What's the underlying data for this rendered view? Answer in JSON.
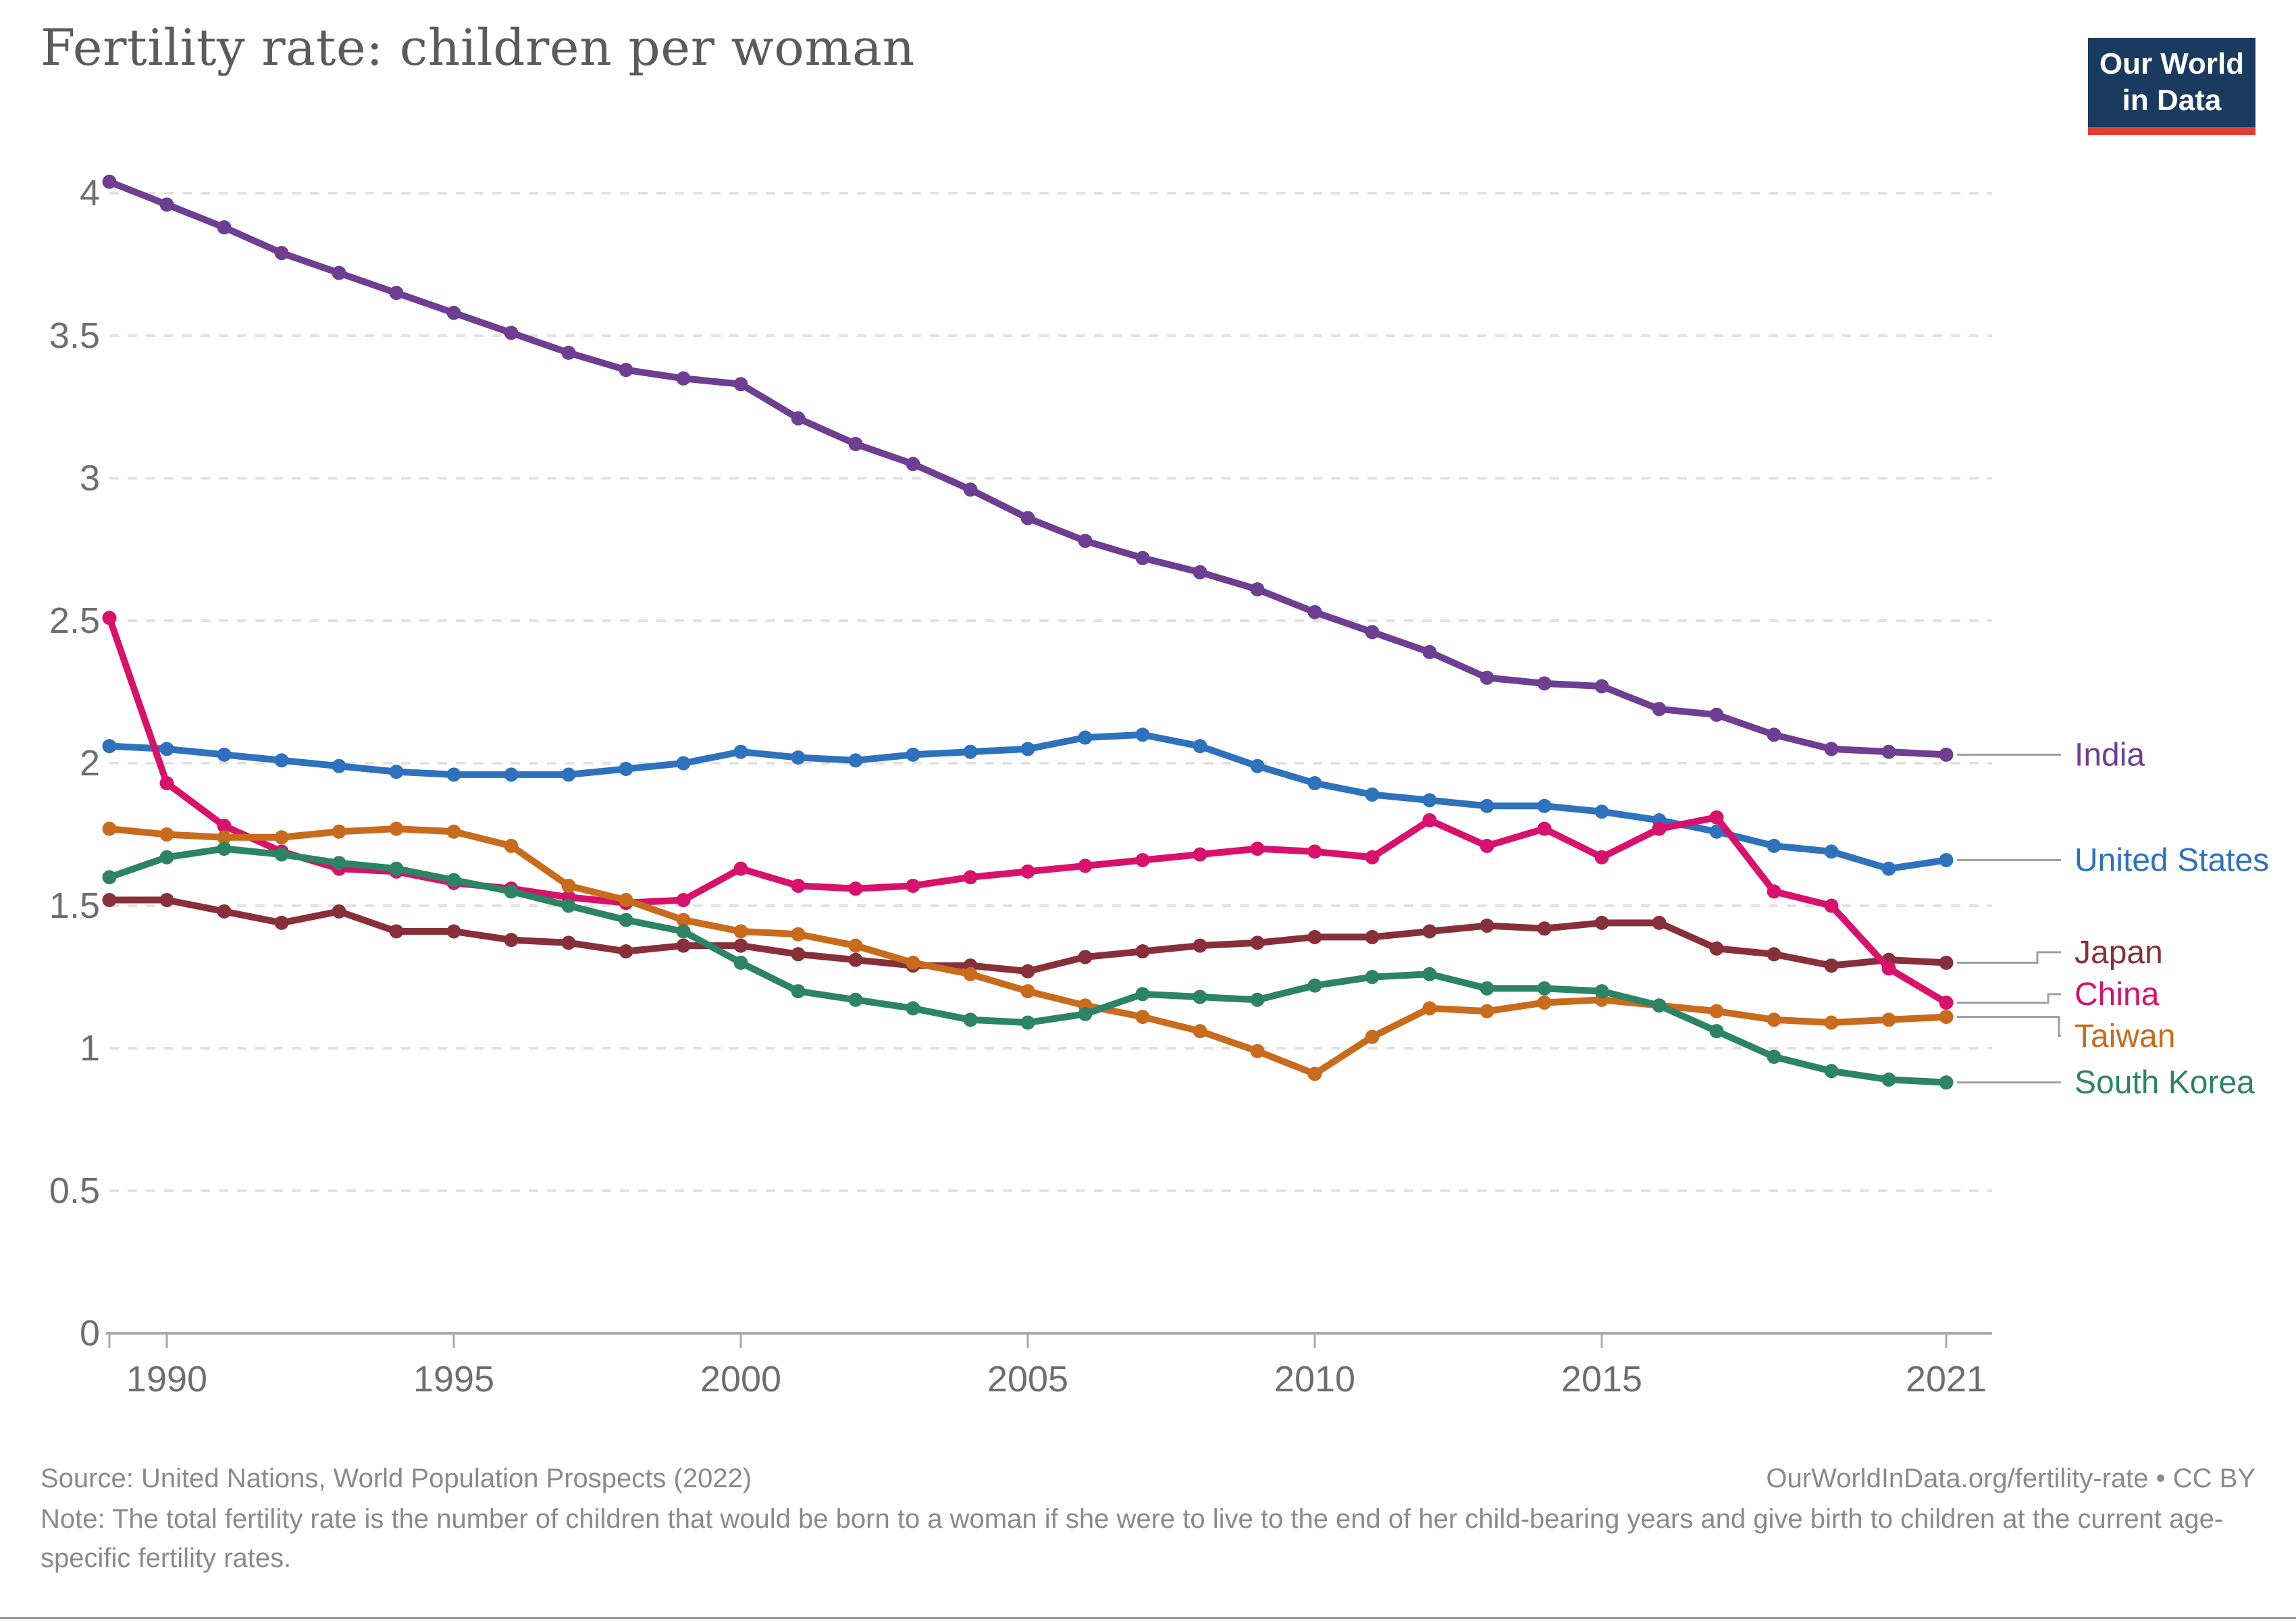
{
  "header": {
    "title": "Fertility rate: children per woman",
    "logo": {
      "line1": "Our World",
      "line2": "in Data",
      "bg_color": "#1a3a5f",
      "bar_color": "#e23d32"
    }
  },
  "footer": {
    "source": "Source: United Nations, World Population Prospects (2022)",
    "note": "Note: The total fertility rate is the number of children that would be born to a woman if she were to live to the end of her child-bearing years and give birth to children at the current age-specific fertility rates.",
    "link": "OurWorldInData.org/fertility-rate • CC BY"
  },
  "chart_data": {
    "type": "line",
    "title": "Fertility rate: children per woman",
    "xlabel": "",
    "ylabel": "",
    "ylim": [
      0,
      4.3
    ],
    "xlim": [
      1989,
      2021
    ],
    "grid": "horizontal-dashed",
    "legend_position": "right-end-labels",
    "x_ticks": [
      1990,
      1995,
      2000,
      2005,
      2010,
      2015,
      2021
    ],
    "y_ticks": [
      0,
      0.5,
      1,
      1.5,
      2,
      2.5,
      3,
      3.5,
      4
    ],
    "x": [
      1989,
      1990,
      1991,
      1992,
      1993,
      1994,
      1995,
      1996,
      1997,
      1998,
      1999,
      2000,
      2001,
      2002,
      2003,
      2004,
      2005,
      2006,
      2007,
      2008,
      2009,
      2010,
      2011,
      2012,
      2013,
      2014,
      2015,
      2016,
      2017,
      2018,
      2019,
      2020,
      2021
    ],
    "series": [
      {
        "name": "India",
        "color": "#6d3e91",
        "values": [
          4.04,
          3.96,
          3.88,
          3.79,
          3.72,
          3.65,
          3.58,
          3.51,
          3.44,
          3.38,
          3.35,
          3.33,
          3.21,
          3.12,
          3.05,
          2.96,
          2.86,
          2.78,
          2.72,
          2.67,
          2.61,
          2.53,
          2.46,
          2.39,
          2.3,
          2.28,
          2.27,
          2.19,
          2.17,
          2.1,
          2.05,
          2.04,
          2.03
        ]
      },
      {
        "name": "United States",
        "color": "#2e72bd",
        "values": [
          2.06,
          2.05,
          2.03,
          2.01,
          1.99,
          1.97,
          1.96,
          1.96,
          1.96,
          1.98,
          2.0,
          2.04,
          2.02,
          2.01,
          2.03,
          2.04,
          2.05,
          2.09,
          2.1,
          2.06,
          1.99,
          1.93,
          1.89,
          1.87,
          1.85,
          1.85,
          1.83,
          1.8,
          1.76,
          1.71,
          1.69,
          1.63,
          1.66
        ]
      },
      {
        "name": "Japan",
        "color": "#883039",
        "values": [
          1.52,
          1.52,
          1.48,
          1.44,
          1.48,
          1.41,
          1.41,
          1.38,
          1.37,
          1.34,
          1.36,
          1.36,
          1.33,
          1.31,
          1.29,
          1.29,
          1.27,
          1.32,
          1.34,
          1.36,
          1.37,
          1.39,
          1.39,
          1.41,
          1.43,
          1.42,
          1.44,
          1.44,
          1.35,
          1.33,
          1.29,
          1.31,
          1.3
        ]
      },
      {
        "name": "China",
        "color": "#d8116c",
        "values": [
          2.51,
          1.93,
          1.78,
          1.69,
          1.63,
          1.62,
          1.58,
          1.56,
          1.53,
          1.51,
          1.52,
          1.63,
          1.57,
          1.56,
          1.57,
          1.6,
          1.62,
          1.64,
          1.66,
          1.68,
          1.7,
          1.69,
          1.67,
          1.8,
          1.71,
          1.77,
          1.67,
          1.77,
          1.81,
          1.55,
          1.5,
          1.28,
          1.16
        ]
      },
      {
        "name": "Taiwan",
        "color": "#c96b1d",
        "values": [
          1.77,
          1.75,
          1.74,
          1.74,
          1.76,
          1.77,
          1.76,
          1.71,
          1.57,
          1.52,
          1.45,
          1.41,
          1.4,
          1.36,
          1.3,
          1.26,
          1.2,
          1.15,
          1.11,
          1.06,
          0.99,
          0.91,
          1.04,
          1.14,
          1.13,
          1.16,
          1.17,
          1.15,
          1.13,
          1.1,
          1.09,
          1.1,
          1.11
        ]
      },
      {
        "name": "South Korea",
        "color": "#2c8465",
        "values": [
          1.6,
          1.67,
          1.7,
          1.68,
          1.65,
          1.63,
          1.59,
          1.55,
          1.5,
          1.45,
          1.41,
          1.3,
          1.2,
          1.17,
          1.14,
          1.1,
          1.09,
          1.12,
          1.19,
          1.18,
          1.17,
          1.22,
          1.25,
          1.26,
          1.21,
          1.21,
          1.2,
          1.15,
          1.06,
          0.97,
          0.92,
          0.89,
          0.88
        ]
      }
    ]
  }
}
